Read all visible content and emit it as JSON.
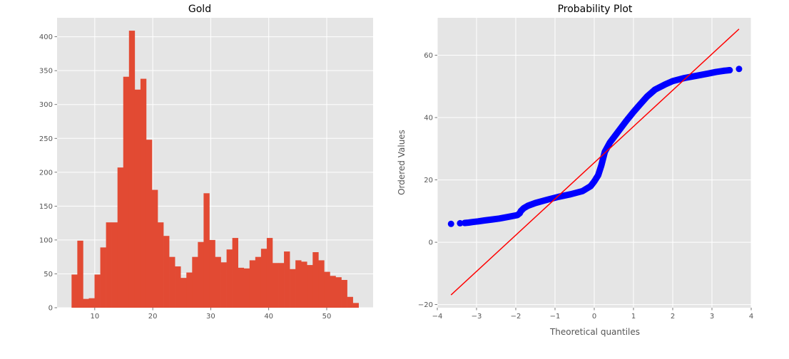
{
  "figure": {
    "background": "#ffffff",
    "axes_background": "#e5e5e5",
    "grid_color": "#ffffff"
  },
  "chart_data": [
    {
      "type": "bar",
      "subtype": "histogram",
      "title": "Gold",
      "xlabel": "",
      "ylabel": "",
      "xlim": [
        3.5,
        58.0
      ],
      "ylim": [
        0,
        428
      ],
      "xticks": [
        10,
        20,
        30,
        40,
        50
      ],
      "yticks": [
        0,
        50,
        100,
        150,
        200,
        250,
        300,
        350,
        400
      ],
      "grid": true,
      "color": "#e24a33",
      "bin_start": 6.0,
      "bin_width": 0.99,
      "values": [
        49,
        99,
        13,
        14,
        49,
        89,
        126,
        126,
        207,
        341,
        409,
        322,
        338,
        248,
        174,
        126,
        106,
        75,
        61,
        44,
        52,
        75,
        97,
        169,
        100,
        75,
        67,
        86,
        103,
        59,
        58,
        70,
        75,
        87,
        103,
        66,
        66,
        83,
        57,
        70,
        68,
        63,
        82,
        70,
        53,
        47,
        45,
        41,
        16,
        7
      ]
    },
    {
      "type": "scatter",
      "subtype": "probability-plot",
      "title": "Probability Plot",
      "xlabel": "Theoretical quantiles",
      "ylabel": "Ordered Values",
      "xlim": [
        -4,
        4
      ],
      "ylim": [
        -21,
        72
      ],
      "xticks": [
        -4,
        -3,
        -2,
        -1,
        0,
        1,
        2,
        3,
        4
      ],
      "xtick_labels": [
        "−4",
        "−3",
        "−2",
        "−1",
        "0",
        "1",
        "2",
        "3",
        "4"
      ],
      "yticks": [
        -20,
        0,
        20,
        40,
        60
      ],
      "ytick_labels": [
        "−20",
        "0",
        "20",
        "40",
        "60"
      ],
      "grid": true,
      "marker_color": "#0000ff",
      "line_color": "#ff0000",
      "fit_line": {
        "x": [
          -3.65,
          3.69
        ],
        "y": [
          -16.9,
          68.4
        ]
      },
      "points": {
        "x": [
          -3.65,
          -3.42,
          -3.3,
          -3.2,
          -3.1,
          -2.96,
          -2.8,
          -2.6,
          -2.42,
          -2.2,
          -1.96,
          -1.9,
          -1.87,
          -1.8,
          -1.69,
          -1.5,
          -1.3,
          -1.15,
          -0.9,
          -0.6,
          -0.3,
          -0.09,
          0.0,
          0.1,
          0.18,
          0.27,
          0.4,
          0.55,
          0.7,
          0.82,
          1.0,
          1.18,
          1.35,
          1.55,
          1.8,
          2.0,
          2.3,
          2.6,
          2.9,
          3.1,
          3.3,
          3.45,
          3.69
        ],
        "y": [
          5.9,
          6.1,
          6.2,
          6.3,
          6.5,
          6.7,
          7.0,
          7.3,
          7.6,
          8.1,
          8.7,
          9.3,
          10.0,
          10.9,
          11.7,
          12.6,
          13.3,
          13.8,
          14.6,
          15.4,
          16.4,
          18.0,
          19.5,
          21.5,
          24.6,
          29.0,
          32.0,
          34.5,
          37.0,
          39.0,
          41.8,
          44.4,
          46.8,
          49.0,
          50.6,
          51.7,
          52.7,
          53.4,
          54.1,
          54.6,
          55.0,
          55.2,
          55.6
        ]
      }
    }
  ]
}
